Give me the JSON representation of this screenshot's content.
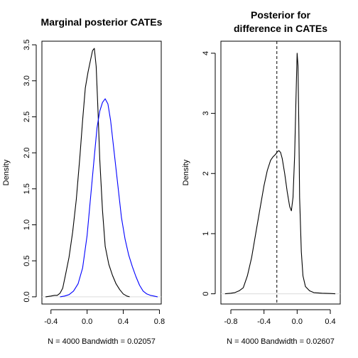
{
  "chart_data": [
    {
      "type": "line",
      "title": [
        "Marginal posterior CATEs"
      ],
      "ylabel": "Density",
      "subtitle": "N = 4000   Bandwidth = 0.02057",
      "xlim": [
        -0.5,
        0.82
      ],
      "ylim": [
        -0.1,
        3.55
      ],
      "xticks": [
        "-0.4",
        "0.0",
        "0.4",
        "0.8"
      ],
      "xtick_values": [
        -0.4,
        0.0,
        0.4,
        0.8
      ],
      "yticks": [
        "0.0",
        "0.5",
        "1.0",
        "1.5",
        "2.0",
        "2.5",
        "3.0",
        "3.5"
      ],
      "ytick_values": [
        0.0,
        0.5,
        1.0,
        1.5,
        2.0,
        2.5,
        3.0,
        3.5
      ],
      "zero_line": true,
      "series": [
        {
          "color": "#000000",
          "x": [
            -0.46,
            -0.4,
            -0.36,
            -0.33,
            -0.3,
            -0.27,
            -0.24,
            -0.2,
            -0.16,
            -0.12,
            -0.08,
            -0.05,
            -0.02,
            0.01,
            0.04,
            0.06,
            0.08,
            0.1,
            0.12,
            0.14,
            0.17,
            0.2,
            0.24,
            0.28,
            0.32,
            0.36,
            0.4,
            0.44,
            0.47
          ],
          "y": [
            0.0,
            0.01,
            0.02,
            0.02,
            0.05,
            0.12,
            0.3,
            0.55,
            0.9,
            1.35,
            1.95,
            2.45,
            2.9,
            3.12,
            3.3,
            3.42,
            3.45,
            3.2,
            2.6,
            1.9,
            1.2,
            0.7,
            0.45,
            0.3,
            0.18,
            0.1,
            0.04,
            0.01,
            0.0
          ]
        },
        {
          "color": "#0000ff",
          "x": [
            -0.3,
            -0.25,
            -0.2,
            -0.15,
            -0.1,
            -0.05,
            0.0,
            0.04,
            0.08,
            0.11,
            0.14,
            0.17,
            0.2,
            0.23,
            0.26,
            0.3,
            0.34,
            0.38,
            0.42,
            0.46,
            0.5,
            0.54,
            0.58,
            0.62,
            0.66,
            0.7,
            0.74,
            0.78
          ],
          "y": [
            0.0,
            0.01,
            0.03,
            0.08,
            0.18,
            0.4,
            0.85,
            1.4,
            1.95,
            2.35,
            2.58,
            2.7,
            2.75,
            2.68,
            2.45,
            2.0,
            1.55,
            1.1,
            0.8,
            0.58,
            0.42,
            0.28,
            0.16,
            0.08,
            0.04,
            0.02,
            0.01,
            0.0
          ]
        }
      ]
    },
    {
      "type": "line",
      "title": [
        "Posterior for",
        "difference in CATEs"
      ],
      "ylabel": "Density",
      "subtitle": "N = 4000   Bandwidth = 0.02607",
      "xlim": [
        -0.92,
        0.52
      ],
      "ylim": [
        -0.17,
        4.2
      ],
      "xticks": [
        "-0.8",
        "-0.4",
        "0.0",
        "0.4"
      ],
      "xtick_values": [
        -0.8,
        -0.4,
        0.0,
        0.4
      ],
      "yticks": [
        "0",
        "1",
        "2",
        "3",
        "4"
      ],
      "ytick_values": [
        0,
        1,
        2,
        3,
        4
      ],
      "zero_line": true,
      "vline": {
        "x": -0.245,
        "style": "dashed"
      },
      "series": [
        {
          "color": "#000000",
          "x": [
            -0.87,
            -0.8,
            -0.75,
            -0.7,
            -0.65,
            -0.6,
            -0.55,
            -0.5,
            -0.45,
            -0.4,
            -0.36,
            -0.32,
            -0.29,
            -0.26,
            -0.24,
            -0.22,
            -0.2,
            -0.18,
            -0.15,
            -0.12,
            -0.09,
            -0.07,
            -0.05,
            -0.03,
            -0.015,
            0.0,
            0.01,
            0.02,
            0.03,
            0.05,
            0.07,
            0.1,
            0.15,
            0.2,
            0.3,
            0.4,
            0.46
          ],
          "y": [
            0.0,
            0.01,
            0.02,
            0.05,
            0.1,
            0.3,
            0.6,
            1.0,
            1.4,
            1.8,
            2.05,
            2.22,
            2.28,
            2.32,
            2.36,
            2.38,
            2.35,
            2.25,
            2.0,
            1.7,
            1.45,
            1.38,
            1.6,
            2.3,
            3.2,
            4.0,
            3.8,
            2.8,
            1.6,
            0.7,
            0.3,
            0.12,
            0.05,
            0.02,
            0.01,
            0.005,
            0.0
          ]
        }
      ]
    }
  ]
}
